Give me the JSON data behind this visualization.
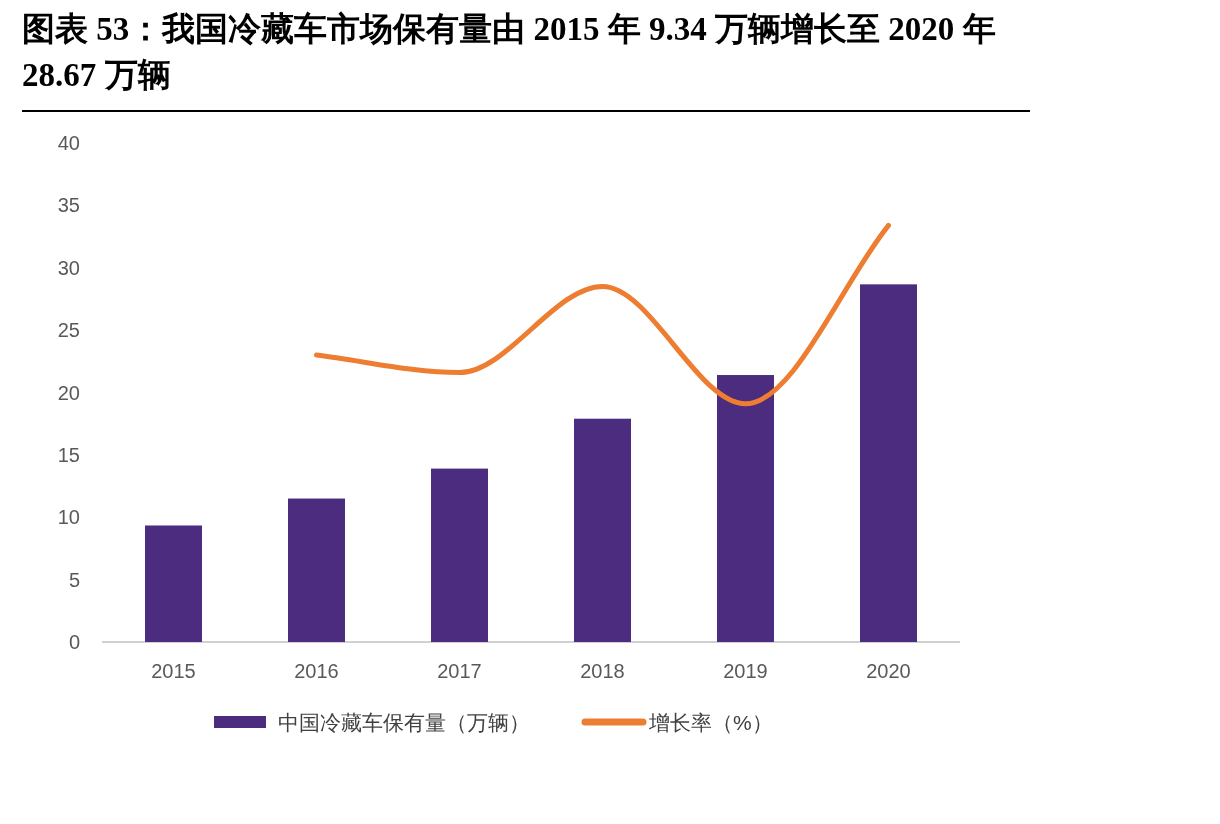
{
  "chart_data": {
    "type": "bar",
    "title": "图表 53：我国冷藏车市场保有量由 2015 年 9.34 万辆增长至 2020 年 28.67 万辆",
    "categories": [
      "2015",
      "2016",
      "2017",
      "2018",
      "2019",
      "2020"
    ],
    "series": [
      {
        "name": "中国冷藏车保有量（万辆）",
        "color": "#4b2c7f",
        "values": [
          9.34,
          11.5,
          13.9,
          17.9,
          21.4,
          28.67
        ]
      },
      {
        "name": "增长率（%）",
        "type": "line",
        "color": "#ed7d31",
        "values": [
          null,
          23.0,
          21.6,
          28.5,
          19.1,
          33.4
        ]
      }
    ],
    "ylim": [
      0,
      40
    ],
    "yticks": [
      0,
      5,
      10,
      15,
      20,
      25,
      30,
      35,
      40
    ],
    "grid": false,
    "legend": "bottom",
    "marker": "none",
    "line_style": "solid"
  }
}
